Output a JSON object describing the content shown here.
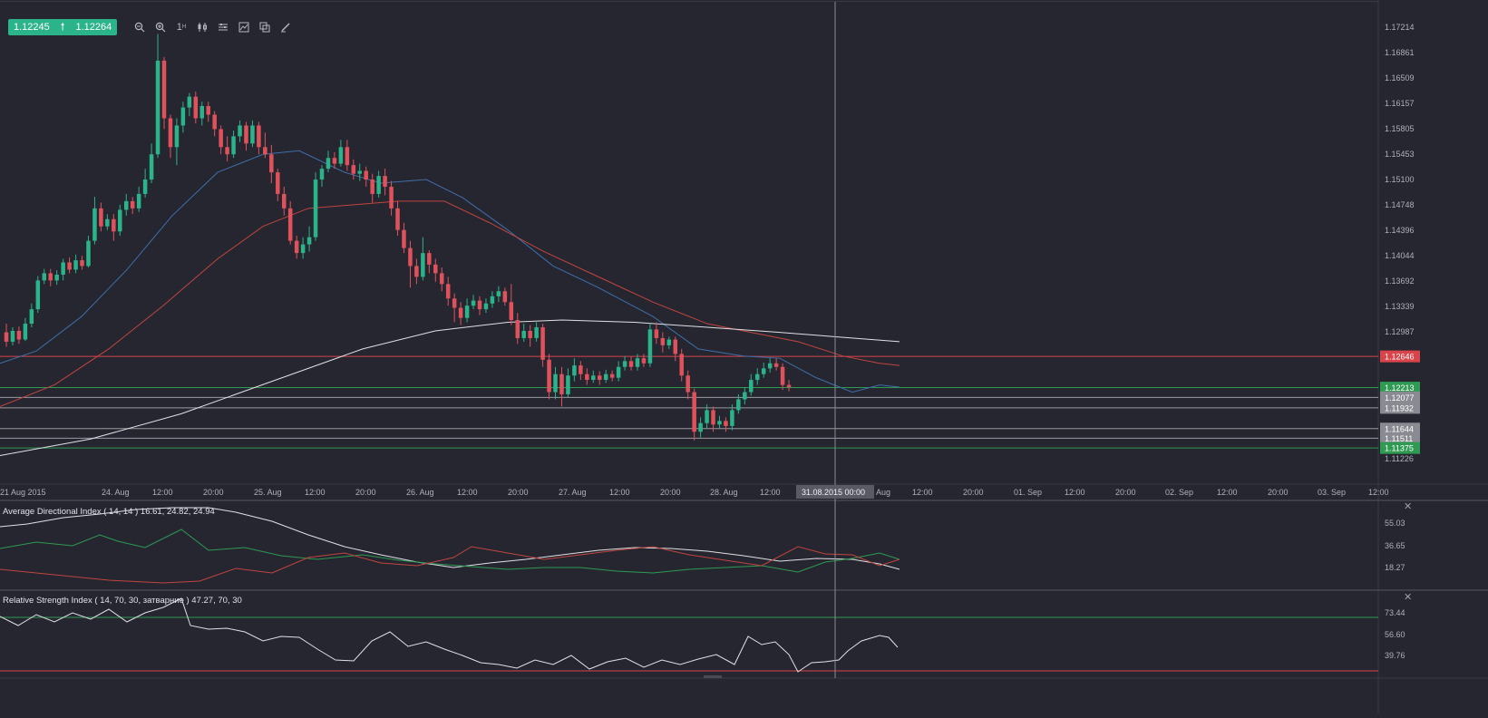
{
  "quote": {
    "bid": "1.12245",
    "ask": "1.12264",
    "arrow": "up-arrow-icon"
  },
  "toolbar": {
    "timeframe": "1",
    "timeframe_sup": "H",
    "icons": [
      "zoom-out-icon",
      "zoom-in-icon",
      "timeframe-selector",
      "candles-icon",
      "indicators-icon",
      "chart-type-icon",
      "templates-icon",
      "draw-icon"
    ]
  },
  "colors": {
    "background": "#262630",
    "bull": "#2bb38a",
    "bear": "#e0525b",
    "ma_blue": "#3e6fa8",
    "ma_red": "#c0453f",
    "ma_white": "#e0e0e6",
    "green_level": "#2e9a52",
    "red_level": "#d9434a",
    "grey_level": "#9a9aa0"
  },
  "price_axis": {
    "ticks": [
      "1.17214",
      "1.16861",
      "1.16509",
      "1.16157",
      "1.15805",
      "1.15453",
      "1.15100",
      "1.14748",
      "1.14396",
      "1.14044",
      "1.13692",
      "1.13339",
      "1.12987",
      "1.11226"
    ],
    "levels": [
      {
        "value": "1.12646",
        "kind": "red"
      },
      {
        "value": "1.12213",
        "kind": "green"
      },
      {
        "value": "1.12077",
        "kind": "grey"
      },
      {
        "value": "1.11932",
        "kind": "grey"
      },
      {
        "value": "1.11644",
        "kind": "grey"
      },
      {
        "value": "1.11511",
        "kind": "grey"
      },
      {
        "value": "1.11375",
        "kind": "green"
      }
    ]
  },
  "time_axis": {
    "labels": [
      "21 Aug 2015",
      "24. Aug",
      "12:00",
      "20:00",
      "25. Aug",
      "12:00",
      "20:00",
      "26. Aug",
      "12:00",
      "20:00",
      "27. Aug",
      "12:00",
      "20:00",
      "28. Aug",
      "12:00",
      "Aug",
      "12:00",
      "20:00",
      "01. Sep",
      "12:00",
      "20:00",
      "02. Sep",
      "12:00",
      "20:00",
      "03. Sep",
      "12:00"
    ],
    "crosshair_label": "31.08.2015 00:00"
  },
  "adx_panel": {
    "title": "Average Directional Index ( 14, 14 ) 16.61, 24.82, 24.94",
    "ticks": [
      "55.03",
      "36.65",
      "18.27"
    ],
    "close_icon": "close-icon"
  },
  "rsi_panel": {
    "title": "Relative Strength Index ( 14, 70, 30, затварние ) 47.27, 70, 30",
    "ticks": [
      "73.44",
      "56.60",
      "39.76"
    ],
    "close_icon": "close-icon"
  }
}
